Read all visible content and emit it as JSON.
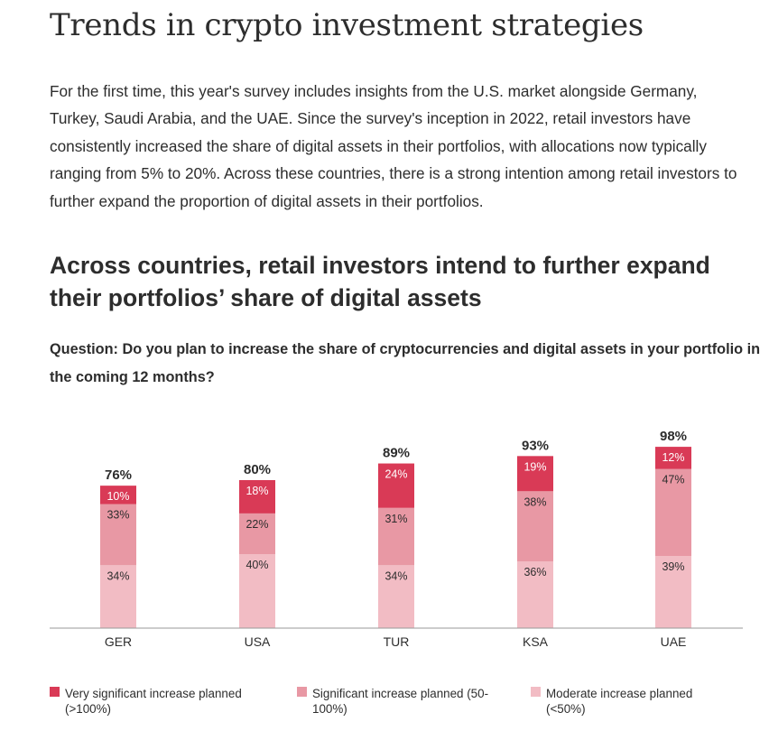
{
  "page": {
    "title": "Trends in crypto investment strategies",
    "intro": "For the first time, this year's survey includes insights from the U.S. market alongside Germany, Turkey, Saudi Arabia, and the UAE. Since the survey's inception in 2022, retail investors have consistently increased the share of digital assets in their portfolios, with allocations now typically ranging from 5% to 20%. Across these countries, there is a strong intention among retail investors to further expand the proportion of digital assets in their portfolios.",
    "heading": "Across countries, retail investors intend to further expand their portfolios’ share of digital assets",
    "question": "Question: Do you plan to increase the share of cryptocurrencies and digital assets in your portfolio in the coming 12 months?"
  },
  "chart_data": {
    "type": "bar",
    "stacked": true,
    "categories": [
      "GER",
      "USA",
      "TUR",
      "KSA",
      "UAE"
    ],
    "totals": [
      "76%",
      "80%",
      "89%",
      "93%",
      "98%"
    ],
    "series": [
      {
        "name": "Moderate increase planned (<50%)",
        "color": "#f2bcc4",
        "values": [
          34,
          40,
          34,
          36,
          39
        ]
      },
      {
        "name": "Significant increase planned (50-100%)",
        "color": "#e898a4",
        "values": [
          33,
          22,
          31,
          38,
          47
        ]
      },
      {
        "name": "Very significant increase planned (>100%)",
        "color": "#d93a56",
        "values": [
          10,
          18,
          24,
          19,
          12
        ]
      }
    ],
    "legend": [
      {
        "label": "Very significant increase planned (>100%)",
        "color": "#d93a56"
      },
      {
        "label": "Significant increase planned (50-100%)",
        "color": "#e898a4"
      },
      {
        "label": "Moderate increase planned (<50%)",
        "color": "#f2bcc4"
      }
    ],
    "ylim": [
      0,
      100
    ]
  }
}
